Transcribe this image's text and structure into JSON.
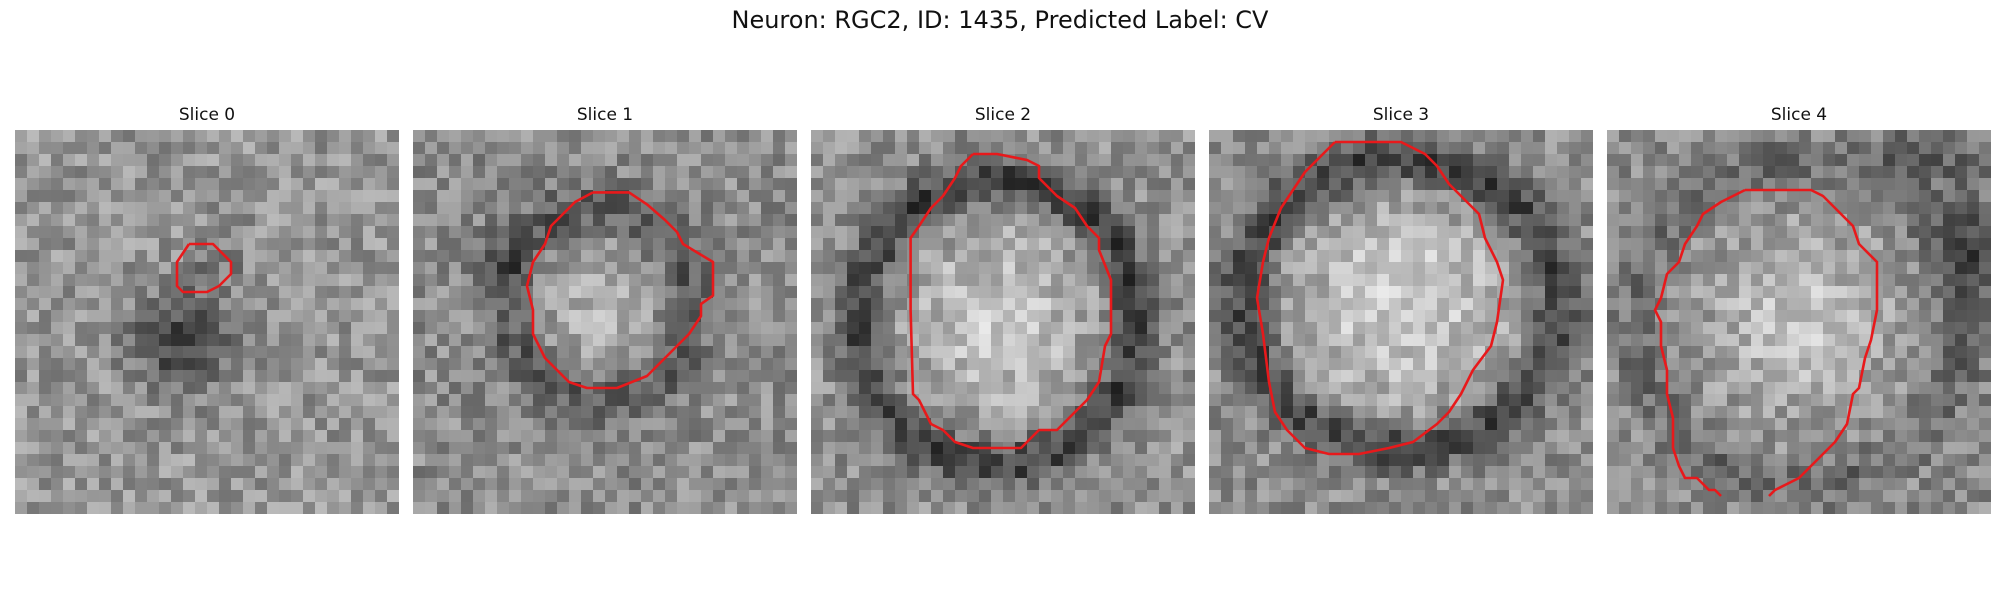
{
  "figure": {
    "title": "Neuron: RGC2, ID: 1435, Predicted Label: CV"
  },
  "panels": [
    {
      "title": "Slice 0"
    },
    {
      "title": "Slice 1"
    },
    {
      "title": "Slice 2"
    },
    {
      "title": "Slice 3"
    },
    {
      "title": "Slice 4"
    }
  ],
  "colors": {
    "contour": "#e8191b",
    "background": "#ffffff"
  },
  "image_style": "grayscale noisy microscopy patch with red segmentation contour"
}
